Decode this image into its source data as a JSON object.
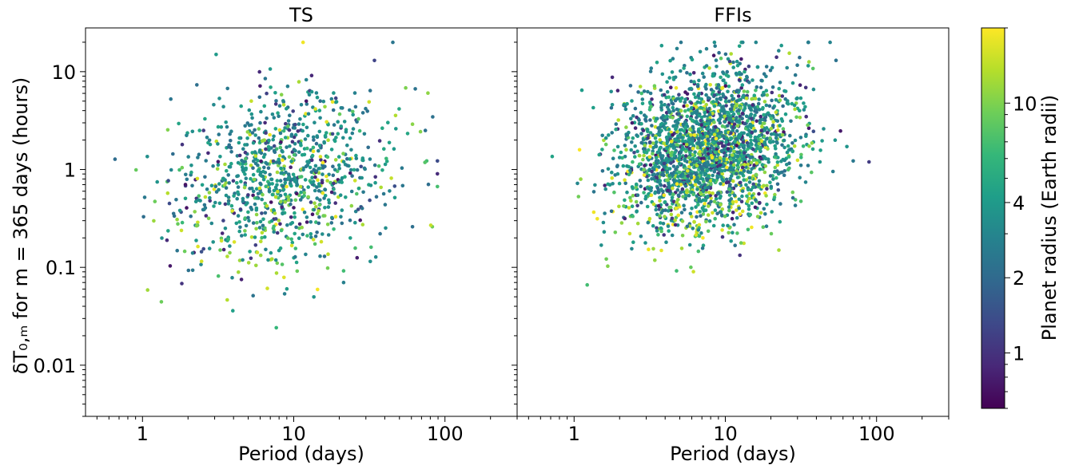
{
  "chart_data": [
    {
      "type": "scatter",
      "title": "TS",
      "xlabel": "Period (days)",
      "ylabel": "δT₀,ₘ for m = 365 days (hours)",
      "xscale": "log",
      "yscale": "log",
      "xlim": [
        0.42,
        300
      ],
      "ylim": [
        0.003,
        28
      ],
      "xticks": [
        "1",
        "10",
        "100"
      ],
      "yticks": [
        "10",
        "1",
        "0.1",
        "0.01"
      ],
      "n_points": 1000,
      "distribution": {
        "log10_period_mean": 0.92,
        "log10_period_sd": 0.36,
        "log10_dT_mean": -0.05,
        "log10_dT_sd": 0.42,
        "radius_range": [
          0.6,
          18
        ]
      }
    },
    {
      "type": "scatter",
      "title": "FFIs",
      "xlabel": "Period (days)",
      "ylabel": "",
      "xscale": "log",
      "yscale": "log",
      "xlim": [
        0.42,
        300
      ],
      "ylim": [
        0.003,
        28
      ],
      "xticks": [
        "1",
        "10",
        "100"
      ],
      "n_points": 2400,
      "distribution": {
        "log10_period_mean": 0.88,
        "log10_period_sd": 0.3,
        "log10_dT_mean": 0.25,
        "log10_dT_sd": 0.38,
        "radius_range": [
          0.6,
          18
        ]
      }
    }
  ],
  "colorbar": {
    "label": "Planet radius (Earth radii)",
    "scale": "log",
    "range": [
      0.6,
      20
    ],
    "ticks": [
      "1",
      "2",
      "4",
      "10"
    ],
    "colormap": "viridis",
    "colors": [
      "#440154",
      "#482878",
      "#3e4989",
      "#31688e",
      "#26828e",
      "#1f9e89",
      "#35b779",
      "#6ece58",
      "#b5de2b",
      "#fde725"
    ]
  }
}
